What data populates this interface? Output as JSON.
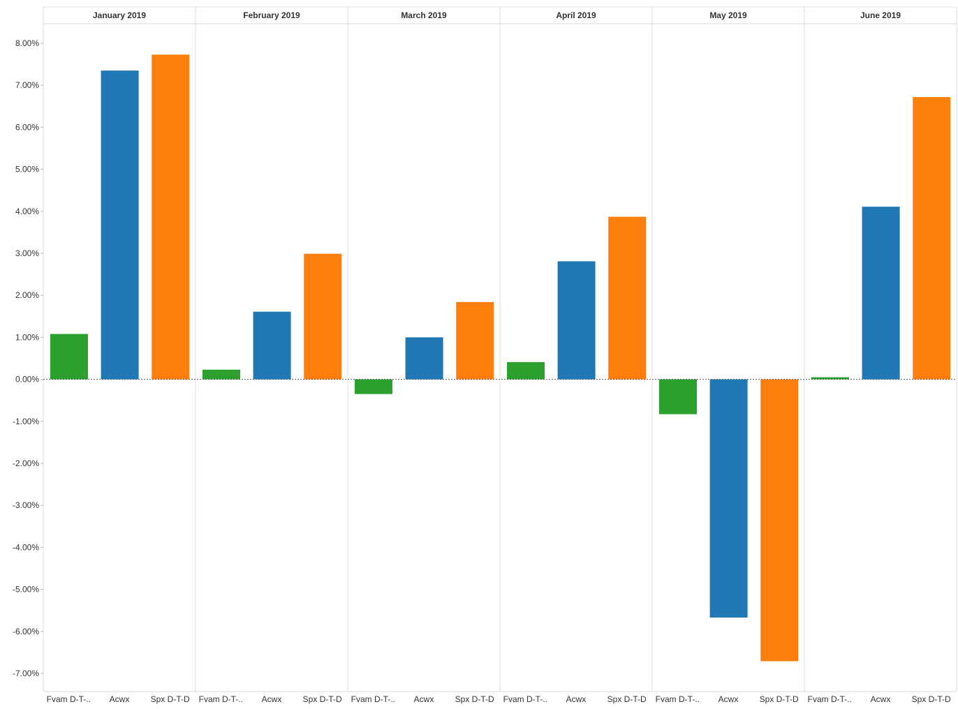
{
  "chart_data": {
    "type": "bar",
    "panels": [
      "January 2019",
      "February 2019",
      "March 2019",
      "April 2019",
      "May 2019",
      "June 2019"
    ],
    "category_labels": [
      "Fvam D-T-..",
      "Acwx",
      "Spx D-T-D"
    ],
    "series": [
      {
        "values": [
          1.08,
          0.23,
          -0.35,
          0.41,
          -0.83,
          0.05
        ],
        "color": "#2ca02c"
      },
      {
        "values": [
          7.35,
          1.61,
          1.0,
          2.81,
          -5.67,
          4.11
        ],
        "color": "#1f77b4"
      },
      {
        "values": [
          7.73,
          2.99,
          1.84,
          3.87,
          -6.71,
          6.72
        ],
        "color": "#ff7f0e"
      }
    ],
    "y_ticks": [
      "8.00%",
      "7.00%",
      "6.00%",
      "5.00%",
      "4.00%",
      "3.00%",
      "2.00%",
      "1.00%",
      "0.00%",
      "-1.00%",
      "-2.00%",
      "-3.00%",
      "-4.00%",
      "-5.00%",
      "-6.00%",
      "-7.00%"
    ],
    "y_tick_values": [
      8,
      7,
      6,
      5,
      4,
      3,
      2,
      1,
      0,
      -1,
      -2,
      -3,
      -4,
      -5,
      -6,
      -7
    ],
    "ylim": [
      -7.4,
      8.0
    ],
    "y_unit": "%",
    "xlabel": "",
    "ylabel": "",
    "grid": false,
    "zero_line": "dotted"
  }
}
